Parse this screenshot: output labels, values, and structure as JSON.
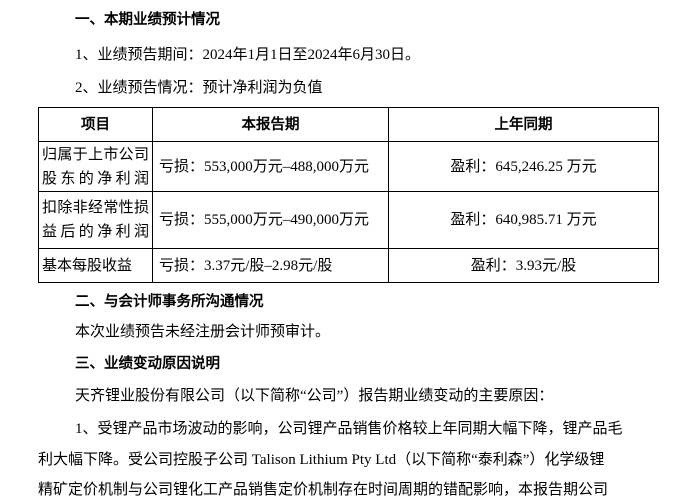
{
  "section1": {
    "heading": "一、本期业绩预计情况",
    "period": "1、业绩预告期间：2024年1月1日至2024年6月30日。",
    "forecast": "2、业绩预告情况：预计净利润为负值"
  },
  "table": {
    "headers": [
      "项目",
      "本报告期",
      "上年同期"
    ],
    "rows": [
      {
        "item": "归属于上市公司股东的净利润",
        "current": "亏损：553,000万元–488,000万元",
        "prior": "盈利：645,246.25 万元"
      },
      {
        "item": "扣除非经常性损益后的净利润",
        "current": "亏损：555,000万元–490,000万元",
        "prior": "盈利：640,985.71 万元"
      },
      {
        "item": "基本每股收益",
        "current": "亏损：3.37元/股–2.98元/股",
        "prior": "盈利：3.93元/股"
      }
    ]
  },
  "section2": {
    "heading": "二、与会计师事务所沟通情况",
    "text": "本次业绩预告未经注册会计师预审计。"
  },
  "section3": {
    "heading": "三、业绩变动原因说明",
    "intro": "天齐锂业股份有限公司（以下简称“公司”）报告期业绩变动的主要原因：",
    "lines": [
      "1、受锂产品市场波动的影响，公司锂产品销售价格较上年同期大幅下降，锂产品毛",
      "利大幅下降。受公司控股子公司 Talison Lithium Pty Ltd（以下简称“泰利森”）化学级锂",
      "精矿定价机制与公司锂化工产品销售定价机制存在时间周期的错配影响，本报告期公司"
    ]
  }
}
